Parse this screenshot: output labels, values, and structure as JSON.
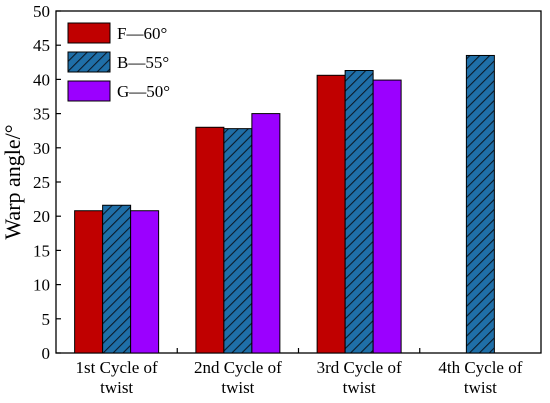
{
  "chart_data": {
    "type": "bar",
    "ylabel": "Warp angle/°",
    "xlabel": "",
    "ylim": [
      0,
      50
    ],
    "yticks": [
      0,
      5,
      10,
      15,
      20,
      25,
      30,
      35,
      40,
      45,
      50
    ],
    "categories": [
      [
        "1st Cycle of",
        "twist"
      ],
      [
        "2nd Cycle of",
        "twist"
      ],
      [
        "3rd Cycle of",
        "twist"
      ],
      [
        "4th Cycle of",
        "twist"
      ]
    ],
    "series": [
      {
        "name": "F—60°",
        "color": "#c00000",
        "pattern": "solid",
        "values": [
          20.8,
          33.0,
          40.6,
          null
        ]
      },
      {
        "name": "B—55°",
        "color": "#1f6fa8",
        "pattern": "hatched",
        "values": [
          21.6,
          32.8,
          41.3,
          43.5
        ]
      },
      {
        "name": "G—50°",
        "color": "#9b00ff",
        "pattern": "solid",
        "values": [
          20.8,
          35.0,
          39.9,
          null
        ]
      }
    ],
    "legend_position": "top-left",
    "grid": false
  }
}
